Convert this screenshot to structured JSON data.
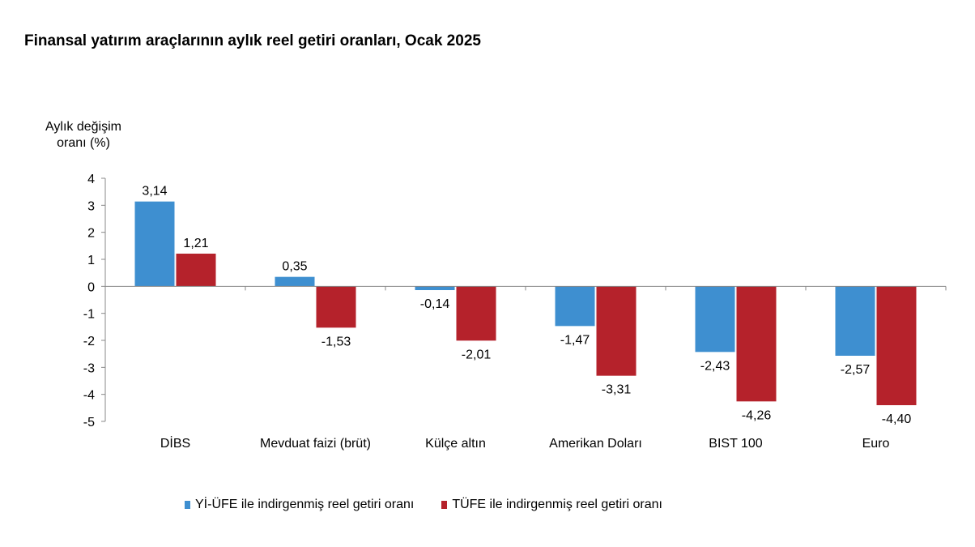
{
  "chart_data": {
    "type": "bar",
    "title": "Finansal yatırım araçlarının aylık reel getiri oranları, Ocak 2025",
    "ylabel": [
      "Aylık değişim",
      "oranı (%)"
    ],
    "xlabel": "",
    "ylim": [
      -5,
      4
    ],
    "yticks": [
      4,
      3,
      2,
      1,
      0,
      -1,
      -2,
      -3,
      -4,
      -5
    ],
    "grid": false,
    "legend_position": "bottom",
    "categories": [
      "DİBS",
      "Mevduat faizi (brüt)",
      "Külçe altın",
      "Amerikan Doları",
      "BIST 100",
      "Euro"
    ],
    "series": [
      {
        "name": "Yİ-ÜFE ile indirgenmiş reel getiri oranı",
        "color": "#3e8fd0",
        "values": [
          3.14,
          0.35,
          -0.14,
          -1.47,
          -2.43,
          -2.57
        ],
        "labels": [
          "3,14",
          "0,35",
          "-0,14",
          "-1,47",
          "-2,43",
          "-2,57"
        ]
      },
      {
        "name": "TÜFE ile indirgenmiş reel getiri oranı",
        "color": "#b5222b",
        "values": [
          1.21,
          -1.53,
          -2.01,
          -3.31,
          -4.26,
          -4.4
        ],
        "labels": [
          "1,21",
          "-1,53",
          "-2,01",
          "-3,31",
          "-4,26",
          "-4,40"
        ]
      }
    ]
  }
}
